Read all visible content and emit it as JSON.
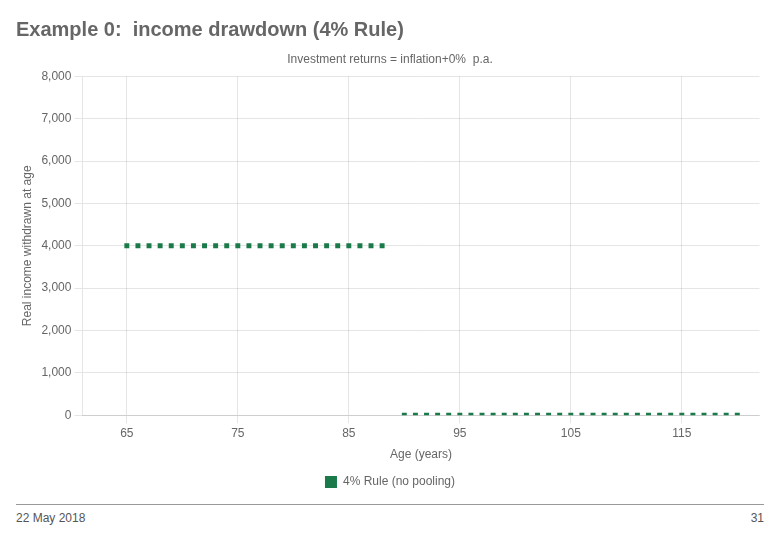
{
  "chart_data": {
    "type": "scatter",
    "title": "Example 0:  income drawdown (4% Rule)",
    "subtitle": "Investment returns = inflation+0%  p.a.",
    "xlabel": "Age (years)",
    "ylabel": "Real income withdrawn at age",
    "series": [
      {
        "name": "4% Rule (no pooling)",
        "color": "#1a7a4a",
        "marker": "square",
        "x": [
          65,
          66,
          67,
          68,
          69,
          70,
          71,
          72,
          73,
          74,
          75,
          76,
          77,
          78,
          79,
          80,
          81,
          82,
          83,
          84,
          85,
          86,
          87,
          88,
          90,
          91,
          92,
          93,
          94,
          95,
          96,
          97,
          98,
          99,
          100,
          101,
          102,
          103,
          104,
          105,
          106,
          107,
          108,
          109,
          110,
          111,
          112,
          113,
          114,
          115,
          116,
          117,
          118,
          119,
          120
        ],
        "values": [
          4000,
          4000,
          4000,
          4000,
          4000,
          4000,
          4000,
          4000,
          4000,
          4000,
          4000,
          4000,
          4000,
          4000,
          4000,
          4000,
          4000,
          4000,
          4000,
          4000,
          4000,
          4000,
          4000,
          4000,
          0,
          0,
          0,
          0,
          0,
          0,
          0,
          0,
          0,
          0,
          0,
          0,
          0,
          0,
          0,
          0,
          0,
          0,
          0,
          0,
          0,
          0,
          0,
          0,
          0,
          0,
          0,
          0,
          0,
          0,
          0
        ]
      }
    ],
    "xlim": [
      61,
      122
    ],
    "xticks": [
      65,
      75,
      85,
      95,
      105,
      115
    ],
    "ylim": [
      0,
      8000
    ],
    "yticks": [
      0,
      {
        "value": 1000,
        "label": "1,000"
      },
      {
        "value": 2000,
        "label": "2,000"
      },
      {
        "value": 3000,
        "label": "3,000"
      },
      {
        "value": 4000,
        "label": "4,000"
      },
      {
        "value": 5000,
        "label": "5,000"
      },
      {
        "value": 6000,
        "label": "6,000"
      },
      {
        "value": 7000,
        "label": "7,000"
      },
      {
        "value": 8000,
        "label": "8,000"
      }
    ],
    "grid": true,
    "legend": "bottom",
    "annotations": [
      "22 May 2018",
      "31"
    ]
  }
}
